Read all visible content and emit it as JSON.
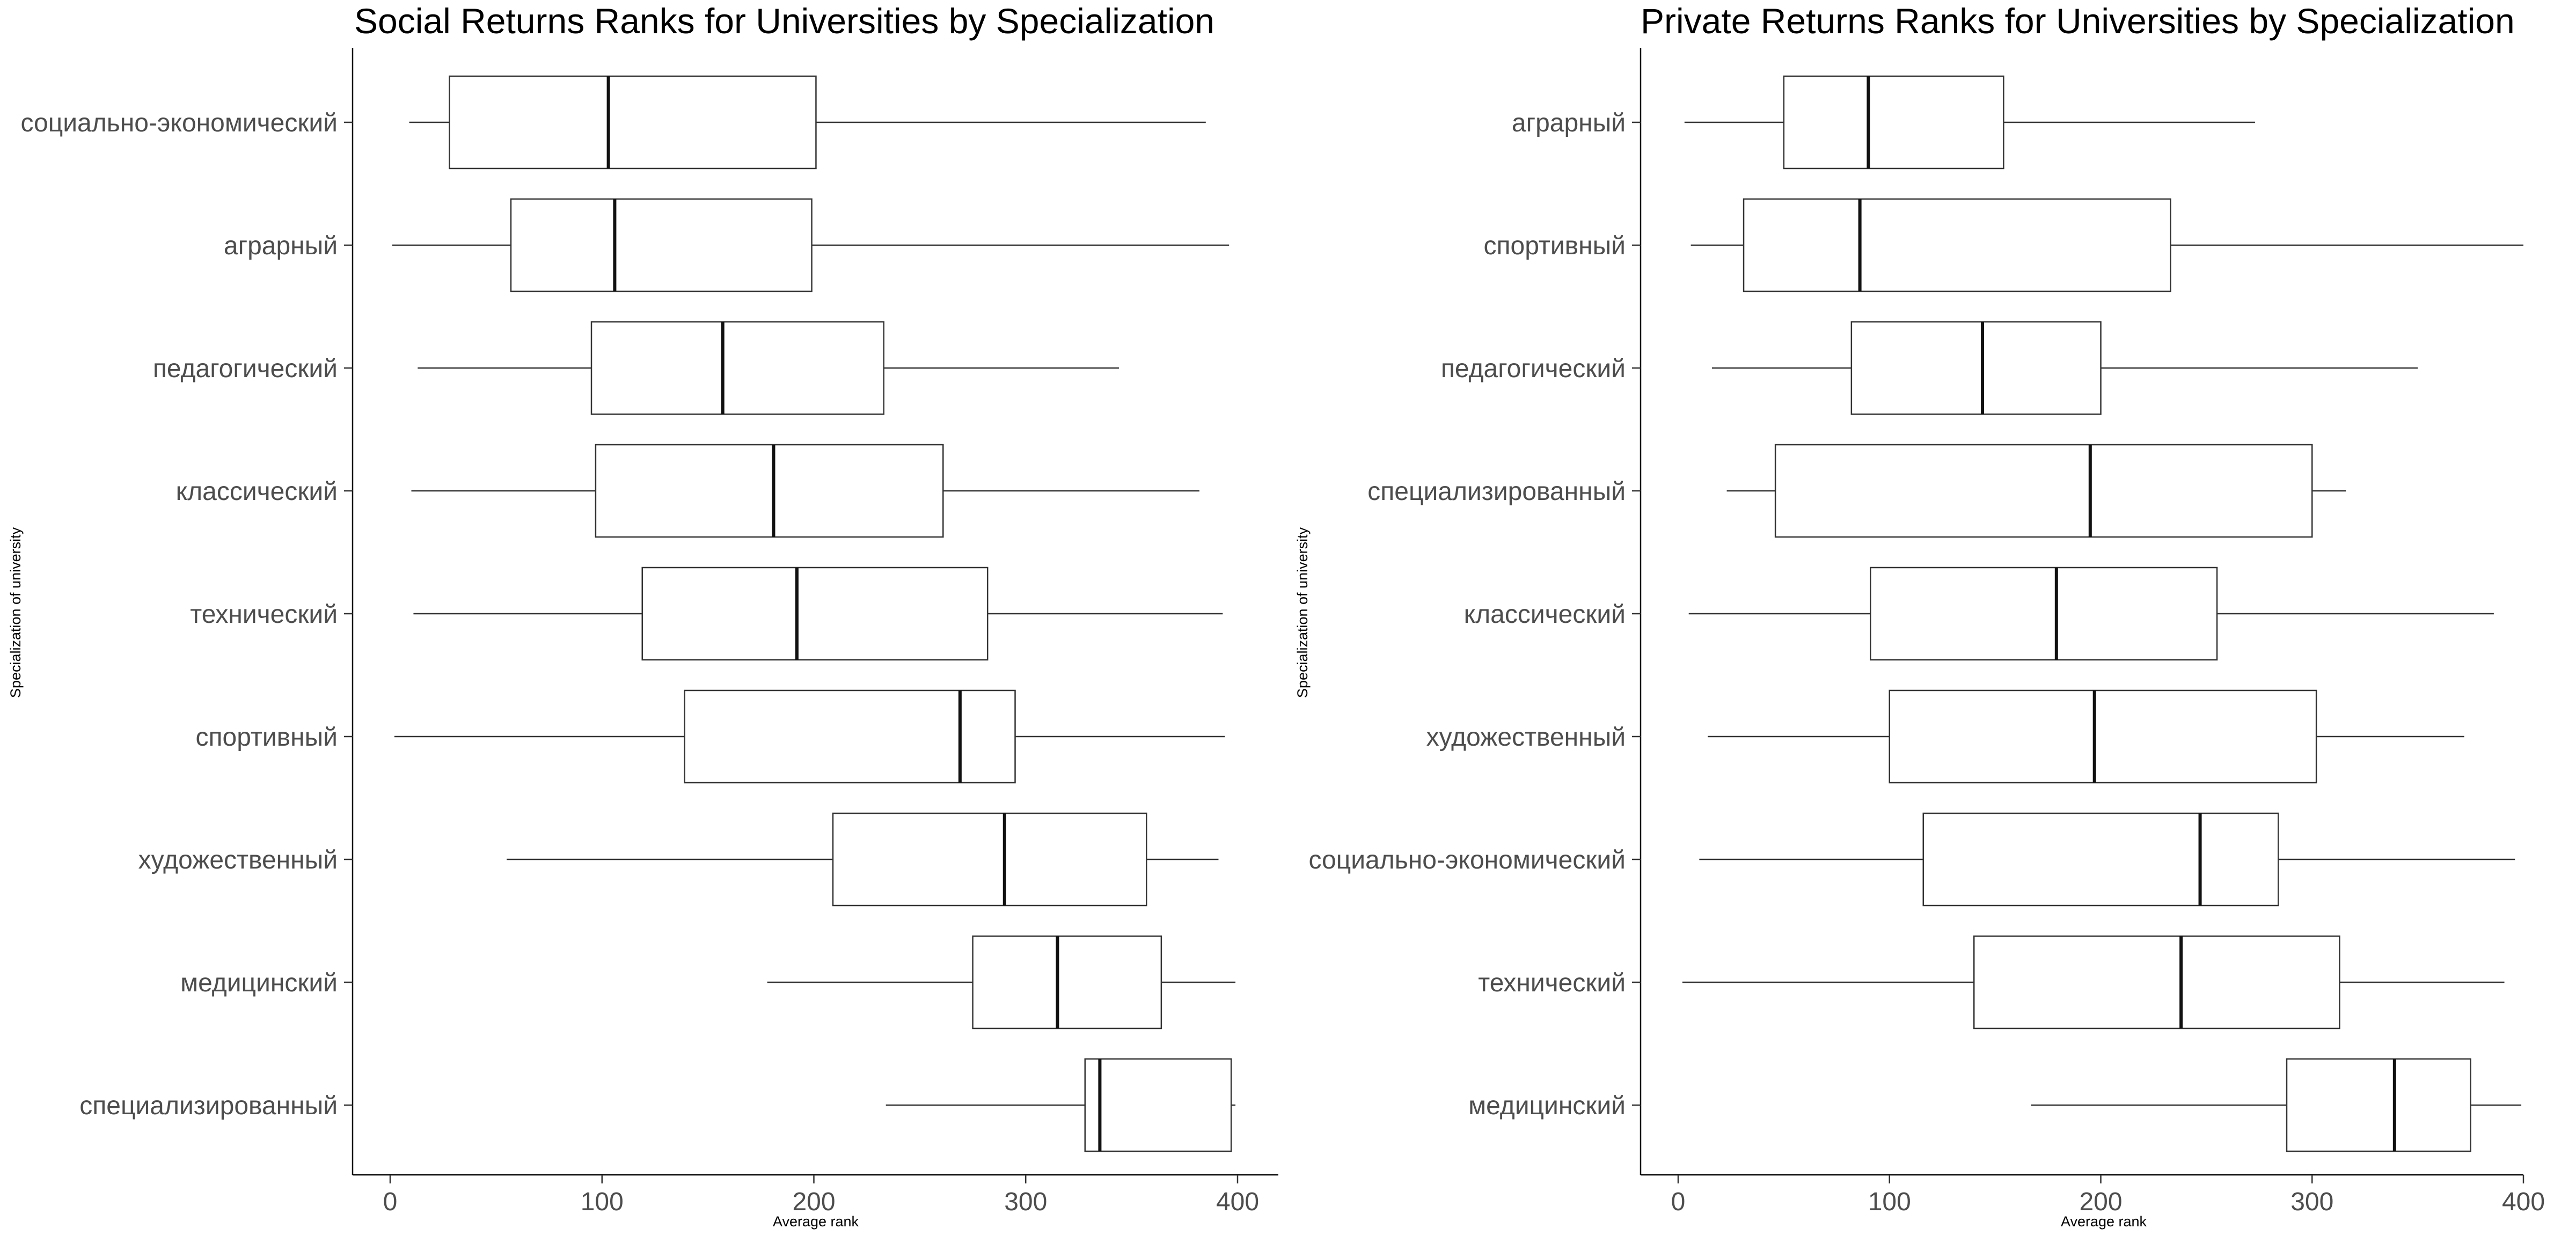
{
  "chart_data": [
    {
      "type": "boxplot",
      "title": "Social Returns Ranks for Universities by Specialization",
      "xlabel": "Average rank",
      "ylabel": "Specialization of university",
      "xlim": [
        -18,
        418
      ],
      "xticks": [
        0,
        100,
        200,
        300,
        400
      ],
      "grid": false,
      "categories": [
        "социально-экономический",
        "аграрный",
        "педагогический",
        "классический",
        "технический",
        "спортивный",
        "художественный",
        "медицинский",
        "специализированный"
      ],
      "boxes": [
        {
          "category": "социально-экономический",
          "min": 9,
          "q1": 28,
          "median": 103,
          "q3": 201,
          "max": 385
        },
        {
          "category": "аграрный",
          "min": 1,
          "q1": 57,
          "median": 106,
          "q3": 199,
          "max": 396
        },
        {
          "category": "педагогический",
          "min": 13,
          "q1": 95,
          "median": 157,
          "q3": 233,
          "max": 344
        },
        {
          "category": "классический",
          "min": 10,
          "q1": 97,
          "median": 181,
          "q3": 261,
          "max": 382
        },
        {
          "category": "технический",
          "min": 11,
          "q1": 119,
          "median": 192,
          "q3": 282,
          "max": 393
        },
        {
          "category": "спортивный",
          "min": 2,
          "q1": 139,
          "median": 269,
          "q3": 295,
          "max": 394
        },
        {
          "category": "художественный",
          "min": 55,
          "q1": 209,
          "median": 290,
          "q3": 357,
          "max": 391
        },
        {
          "category": "медицинский",
          "min": 178,
          "q1": 275,
          "median": 315,
          "q3": 364,
          "max": 399
        },
        {
          "category": "специализированный",
          "min": 234,
          "q1": 328,
          "median": 335,
          "q3": 397,
          "max": 399
        }
      ]
    },
    {
      "type": "boxplot",
      "title": "Private Returns Ranks for Universities by Specialization",
      "xlabel": "Average rank",
      "ylabel": "Specialization of university",
      "xlim": [
        -18,
        418
      ],
      "xticks": [
        0,
        100,
        200,
        300,
        400
      ],
      "grid": false,
      "categories": [
        "аграрный",
        "спортивный",
        "педагогический",
        "специализированный",
        "классический",
        "художественный",
        "социально-экономический",
        "технический",
        "медицинский"
      ],
      "boxes": [
        {
          "category": "аграрный",
          "min": 3,
          "q1": 50,
          "median": 90,
          "q3": 154,
          "max": 273
        },
        {
          "category": "спортивный",
          "min": 6,
          "q1": 31,
          "median": 86,
          "q3": 233,
          "max": 400
        },
        {
          "category": "педагогический",
          "min": 16,
          "q1": 82,
          "median": 144,
          "q3": 200,
          "max": 350
        },
        {
          "category": "специализированный",
          "min": 23,
          "q1": 46,
          "median": 195,
          "q3": 300,
          "max": 316
        },
        {
          "category": "классический",
          "min": 5,
          "q1": 91,
          "median": 179,
          "q3": 255,
          "max": 386
        },
        {
          "category": "художественный",
          "min": 14,
          "q1": 100,
          "median": 197,
          "q3": 302,
          "max": 372
        },
        {
          "category": "социально-экономический",
          "min": 10,
          "q1": 116,
          "median": 247,
          "q3": 284,
          "max": 396
        },
        {
          "category": "технический",
          "min": 2,
          "q1": 140,
          "median": 238,
          "q3": 313,
          "max": 391
        },
        {
          "category": "медицинский",
          "min": 167,
          "q1": 288,
          "median": 339,
          "q3": 375,
          "max": 399
        }
      ]
    }
  ]
}
